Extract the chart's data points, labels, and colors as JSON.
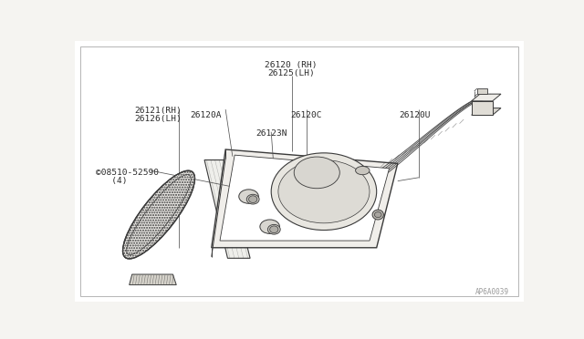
{
  "bg_color": "#f5f4f1",
  "line_color": "#3a3a3a",
  "text_color": "#2a2a2a",
  "watermark": "AP6A0039",
  "fig_width": 6.4,
  "fig_height": 3.72,
  "label_26120": "26120 (RH)\n26125(LH)",
  "label_26121": "26121(RH)\n26126(LH)",
  "label_26120A": "26120A",
  "label_26120C": "26120C",
  "label_26120U": "26120U",
  "label_26123N": "26123N",
  "label_screw": "©08510-52590\n   (4)"
}
